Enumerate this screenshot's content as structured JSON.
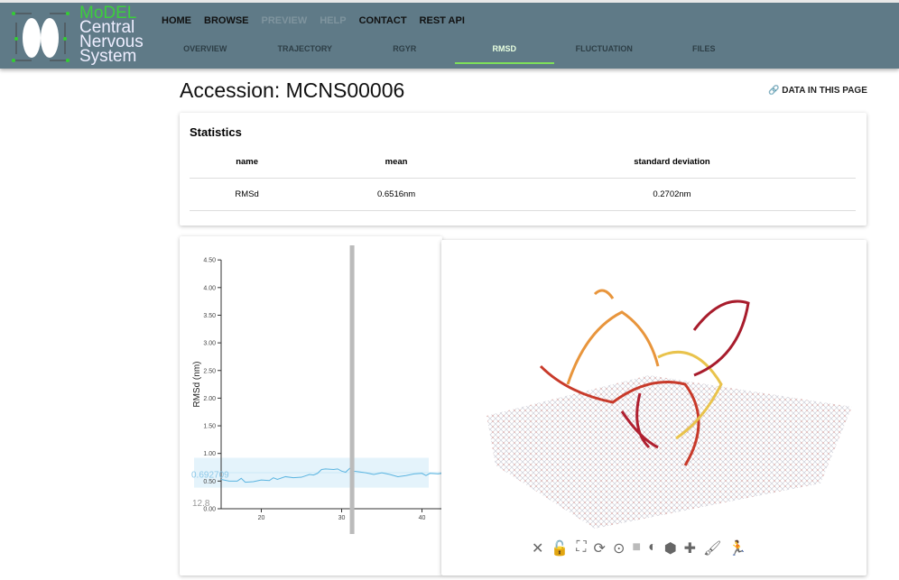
{
  "header": {
    "logo": {
      "brand": "MoDEL",
      "line1": "Central",
      "line2": "Nervous",
      "line3": "System"
    },
    "nav": [
      {
        "label": "HOME",
        "enabled": true
      },
      {
        "label": "BROWSE",
        "enabled": true
      },
      {
        "label": "PREVIEW",
        "enabled": false
      },
      {
        "label": "HELP",
        "enabled": false
      },
      {
        "label": "CONTACT",
        "enabled": true
      },
      {
        "label": "REST API",
        "enabled": true
      }
    ],
    "tabs": [
      {
        "label": "OVERVIEW"
      },
      {
        "label": "TRAJECTORY"
      },
      {
        "label": "RGYR"
      },
      {
        "label": "RMSD",
        "active": true
      },
      {
        "label": "FLUCTUATION"
      },
      {
        "label": "FILES"
      }
    ]
  },
  "page": {
    "title": "Accession: MCNS00006",
    "data_link": "DATA IN THIS PAGE"
  },
  "statistics": {
    "title": "Statistics",
    "columns": [
      "name",
      "mean",
      "standard deviation"
    ],
    "rows": [
      [
        "RMSd",
        "0.6516nm",
        "0.2702nm"
      ]
    ]
  },
  "chart_data": {
    "type": "line",
    "ylabel": "RMSd (nm)",
    "xlabel": "",
    "ylim": [
      0,
      4.5
    ],
    "xlim": [
      15,
      42.5
    ],
    "yticks": [
      "0.00",
      "0.50",
      "1.00",
      "1.50",
      "2.00",
      "2.50",
      "3.00",
      "3.50",
      "4.00",
      "4.50"
    ],
    "xticks": [
      "20",
      "30",
      "40"
    ],
    "x": [
      15,
      16,
      17,
      17.5,
      18,
      19,
      20,
      21,
      21.5,
      22,
      23,
      24,
      25,
      26,
      26.5,
      27,
      27.5,
      28,
      29,
      29.5,
      30,
      30.5,
      31,
      31.5,
      32,
      33,
      34,
      35,
      36,
      37,
      38,
      39,
      40,
      40.5,
      41,
      42,
      42.5
    ],
    "y": [
      0.53,
      0.5,
      0.5,
      0.55,
      0.48,
      0.49,
      0.52,
      0.51,
      0.56,
      0.53,
      0.58,
      0.56,
      0.57,
      0.62,
      0.61,
      0.64,
      0.71,
      0.72,
      0.71,
      0.72,
      0.68,
      0.66,
      0.73,
      0.68,
      0.67,
      0.65,
      0.62,
      0.65,
      0.62,
      0.58,
      0.6,
      0.63,
      0.64,
      0.6,
      0.64,
      0.63,
      0.64
    ],
    "mean": 0.6516,
    "std": 0.2702,
    "cursor_x": 31.3,
    "hover_value": "0.692709",
    "hover_x": "12.8",
    "line_color": "#5ab4e0"
  },
  "viewer": {
    "tools": [
      "close-icon",
      "lock-icon",
      "fullscreen-icon",
      "refresh-icon",
      "center-icon",
      "camera-icon",
      "contrast-icon",
      "cube-icon",
      "puzzle-icon",
      "brush-icon",
      "run-icon"
    ]
  }
}
